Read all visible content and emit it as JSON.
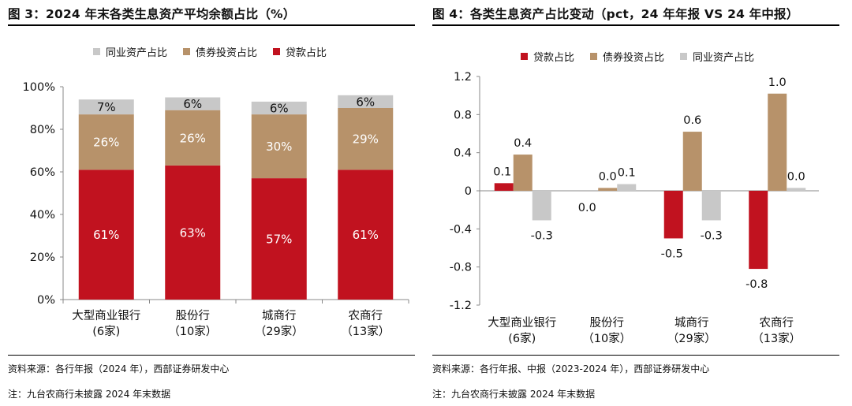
{
  "colors": {
    "loan": "#c1121f",
    "bond": "#b7926a",
    "interbank": "#c8c8c8"
  },
  "left": {
    "title": "图 3：2024 年末各类生息资产平均余额占比（%）",
    "source": "资料来源：各行年报（2024 年），西部证券研发中心",
    "note": "注：九台农商行未披露 2024 年末数据"
  },
  "right": {
    "title": "图 4：各类生息资产占比变动（pct，24 年年报 VS 24 年中报）",
    "source": "资料来源：各行年报、中报（2023-2024 年），西部证券研发中心",
    "note": "注：九台农商行未披露 2024 年末数据"
  },
  "chart_data": [
    {
      "type": "bar",
      "stacked": true,
      "categories": [
        [
          "大型商业银行",
          "(6家)"
        ],
        [
          "股份行",
          "（10家）"
        ],
        [
          "城商行",
          "（29家）"
        ],
        [
          "农商行",
          "（13家）"
        ]
      ],
      "series": [
        {
          "name": "贷款占比",
          "color": "#c1121f",
          "values": [
            61,
            63,
            57,
            61
          ],
          "labels": [
            "61%",
            "63%",
            "57%",
            "61%"
          ]
        },
        {
          "name": "债券投资占比",
          "color": "#b7926a",
          "values": [
            26,
            26,
            30,
            29
          ],
          "labels": [
            "26%",
            "26%",
            "30%",
            "29%"
          ]
        },
        {
          "name": "同业资产占比",
          "color": "#c8c8c8",
          "values": [
            7,
            6,
            6,
            6
          ],
          "labels": [
            "7%",
            "6%",
            "6%",
            "6%"
          ]
        }
      ],
      "legend_order": [
        "同业资产占比",
        "债券投资占比",
        "贷款占比"
      ],
      "ylim": [
        0,
        100
      ],
      "yticks": [
        "0%",
        "20%",
        "40%",
        "60%",
        "80%",
        "100%"
      ],
      "legend_position": "top"
    },
    {
      "type": "bar",
      "stacked": false,
      "categories": [
        [
          "大型商业银行",
          "(6家)"
        ],
        [
          "股份行",
          "（10家）"
        ],
        [
          "城商行",
          "（29家）"
        ],
        [
          "农商行",
          "（13家）"
        ]
      ],
      "series": [
        {
          "name": "贷款占比",
          "color": "#c1121f",
          "values": [
            0.08,
            0.0,
            -0.5,
            -0.82
          ],
          "labels": [
            "0.1",
            "0.0",
            "-0.5",
            "-0.8"
          ]
        },
        {
          "name": "债券投资占比",
          "color": "#b7926a",
          "values": [
            0.38,
            0.03,
            0.62,
            1.02
          ],
          "labels": [
            "0.4",
            "0.0",
            "0.6",
            "1.0"
          ]
        },
        {
          "name": "同业资产占比",
          "color": "#c8c8c8",
          "values": [
            -0.31,
            0.07,
            -0.31,
            0.03
          ],
          "labels": [
            "-0.3",
            "0.1",
            "-0.3",
            "0.0"
          ]
        }
      ],
      "legend_order": [
        "贷款占比",
        "债券投资占比",
        "同业资产占比"
      ],
      "ylim": [
        -1.2,
        1.2
      ],
      "yticks": [
        "-1.2",
        "-0.8",
        "-0.4",
        "0",
        "0.4",
        "0.8",
        "1.2"
      ],
      "legend_position": "top"
    }
  ]
}
